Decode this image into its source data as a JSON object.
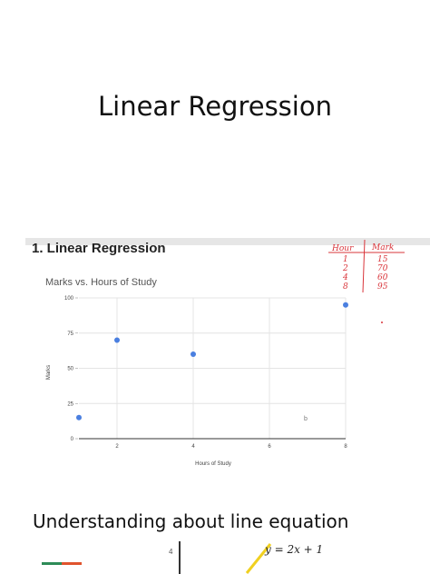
{
  "slide": {
    "title": "Linear Regression",
    "caption": "Understanding about line equation"
  },
  "embedded": {
    "heading": "1.  Linear Regression",
    "stray_mark": "b"
  },
  "handwritten_table": {
    "headers": [
      "Hour",
      "Mark"
    ],
    "rows": [
      [
        "1",
        "15"
      ],
      [
        "2",
        "70"
      ],
      [
        "4",
        "60"
      ],
      [
        "8",
        "95"
      ]
    ],
    "ink_color": "#d9343a"
  },
  "chart_data": {
    "type": "scatter",
    "title": "Marks vs. Hours of Study",
    "xlabel": "Hours of Study",
    "ylabel": "Marks",
    "xlim": [
      1,
      8
    ],
    "ylim": [
      0,
      100
    ],
    "xticks": [
      2,
      4,
      6,
      8
    ],
    "yticks": [
      0,
      25,
      50,
      75,
      100
    ],
    "grid": true,
    "series": [
      {
        "x": [
          1,
          2,
          4,
          8
        ],
        "y": [
          15,
          70,
          60,
          95
        ],
        "color": "#4a7fe0"
      }
    ]
  },
  "bottom_preview": {
    "tick_label": "4",
    "equation": "y = 2x + 1",
    "legend_colors": [
      "#2e8b57",
      "#e0542e"
    ],
    "line_color": "#f0d020"
  }
}
